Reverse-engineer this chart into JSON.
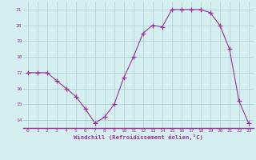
{
  "x": [
    0,
    1,
    2,
    3,
    4,
    5,
    6,
    7,
    8,
    9,
    10,
    11,
    12,
    13,
    14,
    15,
    16,
    17,
    18,
    19,
    20,
    21,
    22,
    23
  ],
  "y": [
    17,
    17,
    17,
    16.5,
    16,
    15.5,
    14.7,
    13.8,
    14.2,
    15,
    16.7,
    18,
    19.5,
    20,
    19.9,
    21,
    21,
    21,
    21,
    20.8,
    20,
    18.5,
    15.2,
    13.8
  ],
  "line_color": "#993399",
  "marker": "+",
  "marker_size": 4,
  "bg_color": "#d5eef0",
  "grid_color": "#a8cdd0",
  "xlabel": "Windchill (Refroidissement éolien,°C)",
  "xlabel_color": "#993399",
  "yticks": [
    14,
    15,
    16,
    17,
    18,
    19,
    20,
    21
  ],
  "xticks": [
    0,
    1,
    2,
    3,
    4,
    5,
    6,
    7,
    8,
    9,
    10,
    11,
    12,
    13,
    14,
    15,
    16,
    17,
    18,
    19,
    20,
    21,
    22,
    23
  ],
  "ylim": [
    13.5,
    21.5
  ],
  "xlim": [
    -0.5,
    23.5
  ]
}
